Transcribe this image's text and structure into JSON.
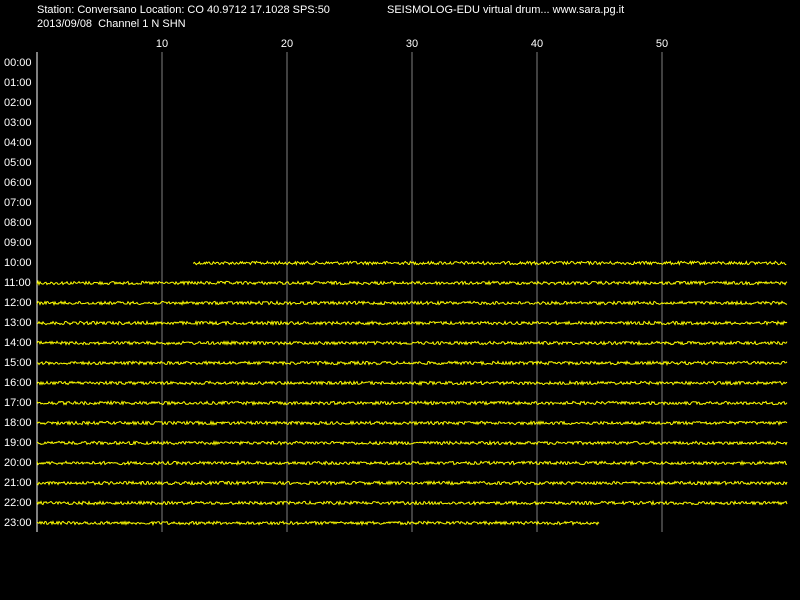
{
  "chart_data": {
    "type": "drum",
    "station": "Station: Conversano Location: CO 40.9712 17.1028 SPS:50",
    "title": "SEISMOLOG-EDU virtual drum... www.sara.pg.it",
    "subtitle": "2013/09/08  Channel 1 N SHN",
    "categories": [
      "00:00",
      "01:00",
      "02:00",
      "03:00",
      "04:00",
      "05:00",
      "06:00",
      "07:00",
      "08:00",
      "09:00",
      "10:00",
      "11:00",
      "12:00",
      "13:00",
      "14:00",
      "15:00",
      "16:00",
      "17:00",
      "18:00",
      "19:00",
      "20:00",
      "21:00",
      "22:00",
      "23:00"
    ],
    "trace_start": [
      null,
      null,
      null,
      null,
      null,
      null,
      null,
      null,
      null,
      null,
      12.5,
      0,
      0,
      0,
      0,
      0,
      0,
      0,
      0,
      0,
      0,
      0,
      0,
      0
    ],
    "trace_end": [
      null,
      null,
      null,
      null,
      null,
      null,
      null,
      null,
      null,
      null,
      60,
      60,
      60,
      60,
      60,
      60,
      60,
      60,
      60,
      60,
      60,
      60,
      60,
      45
    ],
    "xlim": [
      0,
      60
    ],
    "xticks": [
      10,
      20,
      30,
      40,
      50
    ],
    "grid": true,
    "color": "#ffff00",
    "grid_color": "#808080"
  }
}
